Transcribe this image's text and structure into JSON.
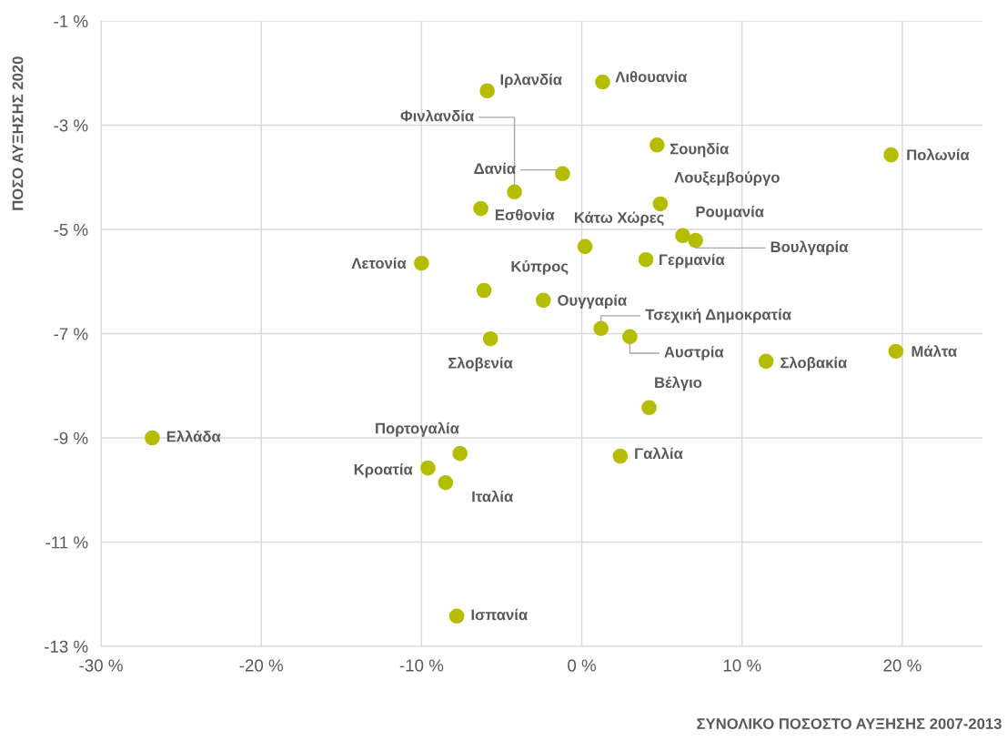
{
  "chart_data": {
    "type": "scatter",
    "xlabel": "ΣΥΝΟΛΙΚΟ ΠΟΣΟΣΤΟ ΑΥΞΗΣΗΣ 2007-2013",
    "ylabel": "ΠΟΣΟ ΑΥΞΗΣΗΣ 2020",
    "x": [
      -5.9,
      1.3,
      4.7,
      19.3,
      -4.2,
      -1.2,
      4.9,
      -6.3,
      0.2,
      6.3,
      7.1,
      4.0,
      -10.0,
      -6.1,
      -2.4,
      1.2,
      3.0,
      -5.7,
      11.5,
      19.6,
      4.2,
      -26.8,
      -7.6,
      2.4,
      -9.6,
      -8.5,
      -7.8
    ],
    "series": [
      {
        "color": "#b5bd00",
        "values": [
          -2.34,
          -2.17,
          -3.38,
          -3.57,
          -4.28,
          -3.93,
          -4.51,
          -4.6,
          -5.33,
          -5.12,
          -5.21,
          -5.58,
          -5.65,
          -6.17,
          -6.36,
          -6.9,
          -7.06,
          -7.1,
          -7.53,
          -7.34,
          -8.42,
          -9.0,
          -9.3,
          -9.35,
          -9.58,
          -9.86,
          -12.42
        ]
      }
    ],
    "annotations": [
      {
        "text": "Ιρλανδία",
        "x": -5.9,
        "y": -2.34
      },
      {
        "text": "Λιθουανία",
        "x": 1.3,
        "y": -2.17
      },
      {
        "text": "Σουηδία",
        "x": 4.7,
        "y": -3.38
      },
      {
        "text": "Πολωνία",
        "x": 19.3,
        "y": -3.57
      },
      {
        "text": "Φινλανδία",
        "x": -4.2,
        "y": -4.28
      },
      {
        "text": "Δανία",
        "x": -1.2,
        "y": -3.93
      },
      {
        "text": "Λουξεμβούργο",
        "x": 4.9,
        "y": -4.51
      },
      {
        "text": "Εσθονία",
        "x": -6.3,
        "y": -4.6
      },
      {
        "text": "Κάτω Χώρες",
        "x": 0.2,
        "y": -5.33
      },
      {
        "text": "Ρουμανία",
        "x": 6.3,
        "y": -5.12
      },
      {
        "text": "Βουλγαρία",
        "x": 7.1,
        "y": -5.21
      },
      {
        "text": "Γερμανία",
        "x": 4.0,
        "y": -5.58
      },
      {
        "text": "Λετονία",
        "x": -10.0,
        "y": -5.65
      },
      {
        "text": "Κύπρος",
        "x": -6.1,
        "y": -6.17
      },
      {
        "text": "Ουγγαρία",
        "x": -2.4,
        "y": -6.36
      },
      {
        "text": "Τσεχική Δημοκρατία",
        "x": 1.2,
        "y": -6.9
      },
      {
        "text": "Αυστρία",
        "x": 3.0,
        "y": -7.06
      },
      {
        "text": "Σλοβενία",
        "x": -5.7,
        "y": -7.1
      },
      {
        "text": "Σλοβακία",
        "x": 11.5,
        "y": -7.53
      },
      {
        "text": "Μάλτα",
        "x": 19.6,
        "y": -7.34
      },
      {
        "text": "Βέλγιο",
        "x": 4.2,
        "y": -8.42
      },
      {
        "text": "Ελλάδα",
        "x": -26.8,
        "y": -9.0
      },
      {
        "text": "Πορτογαλία",
        "x": -7.6,
        "y": -9.3
      },
      {
        "text": "Γαλλία",
        "x": 2.4,
        "y": -9.35
      },
      {
        "text": "Κροατία",
        "x": -9.6,
        "y": -9.58
      },
      {
        "text": "Ιταλία",
        "x": -8.5,
        "y": -9.86
      },
      {
        "text": "Ισπανία",
        "x": -7.8,
        "y": -12.42
      }
    ],
    "xlim": [
      -30,
      25
    ],
    "xticks": [
      {
        "value": -30,
        "label": "-30 %"
      },
      {
        "value": -20,
        "label": "-20 %"
      },
      {
        "value": -10,
        "label": "-10 %"
      },
      {
        "value": 0,
        "label": "0 %"
      },
      {
        "value": 10,
        "label": "10 %"
      },
      {
        "value": 20,
        "label": "20 %"
      }
    ],
    "ylim": [
      -13,
      -1
    ],
    "yticks": [
      {
        "value": -13,
        "label": "-13 %"
      },
      {
        "value": -11,
        "label": "-11 %"
      },
      {
        "value": -9,
        "label": "-9 %"
      },
      {
        "value": -7,
        "label": "-7 %"
      },
      {
        "value": -5,
        "label": "-5 %"
      },
      {
        "value": -3,
        "label": "-3 %"
      },
      {
        "value": -1,
        "label": "-1 %"
      }
    ],
    "grid": true,
    "marker": "circle",
    "legend": false
  }
}
